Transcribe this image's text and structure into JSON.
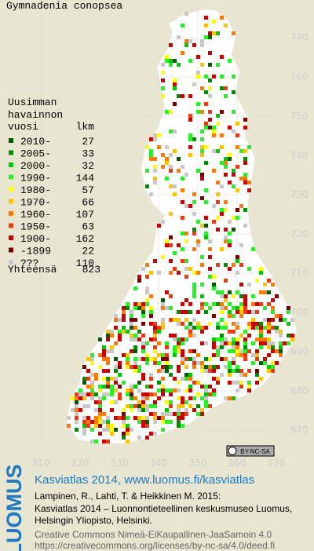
{
  "title": "Gymnadenia conopsea",
  "legend": {
    "heading": [
      "Uusimman",
      "havainnon",
      "vuosi"
    ],
    "count_heading": "lkm",
    "rows": [
      {
        "period": "2010-",
        "count": 27,
        "color": "#005a00"
      },
      {
        "period": "2005-",
        "count": 33,
        "color": "#008c00"
      },
      {
        "period": "2000-",
        "count": 32,
        "color": "#00c800"
      },
      {
        "period": "1990-",
        "count": 144,
        "color": "#28f028"
      },
      {
        "period": "1980-",
        "count": 57,
        "color": "#ffff00"
      },
      {
        "period": "1970-",
        "count": 66,
        "color": "#ffc400"
      },
      {
        "period": "1960-",
        "count": 107,
        "color": "#ff7a00"
      },
      {
        "period": "1950-",
        "count": 63,
        "color": "#ee3a10"
      },
      {
        "period": "1900-",
        "count": 162,
        "color": "#c80000"
      },
      {
        "period": "-1899",
        "count": 22,
        "color": "#7a0000"
      },
      {
        "period": "???",
        "count": 110,
        "color": "#c8c8c8"
      }
    ],
    "total_label": "Yhteensä",
    "total": 823
  },
  "axis": {
    "northing": [
      670,
      680,
      690,
      700,
      710,
      720,
      730,
      740,
      750,
      760,
      770
    ],
    "easting": [
      310,
      320,
      330,
      340,
      350,
      360,
      370
    ]
  },
  "license_badge": "BY-NC-SA",
  "footer": {
    "brand": "LUOMUS",
    "headline": "Kasviatlas 2014, www.luomus.fi/kasviatlas",
    "citation": [
      "Lampinen, R., Lahti, T. & Heikkinen M. 2015:",
      "Kasviatlas 2014 – Luonnontieteellinen keskusmuseo Luomus,",
      "Helsingin Yliopisto, Helsinki."
    ],
    "license": [
      "Creative Commons Nimeä-EiKaupallinen-JaaSamoin 4.0",
      "https://creativecommons.org/licenses/by-nc-sa/4.0/deed.fi"
    ]
  }
}
